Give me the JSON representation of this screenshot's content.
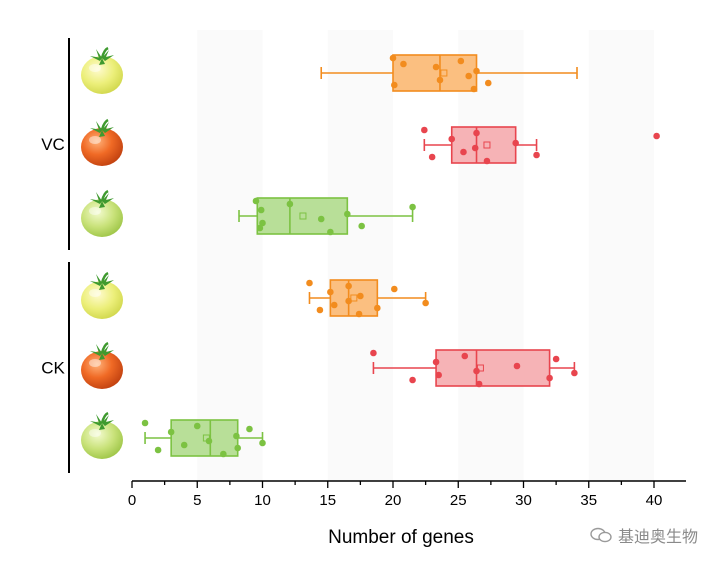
{
  "chart_data": {
    "type": "box",
    "orientation": "horizontal",
    "xlabel": "Number of genes",
    "xlim": [
      0,
      42
    ],
    "xticks": [
      0,
      5,
      10,
      15,
      20,
      25,
      30,
      35,
      40
    ],
    "groups": [
      {
        "name": "VC",
        "rows": [
          {
            "stage": "yellow",
            "color": "#f28c1e",
            "fill": "#fbbf80",
            "min": 14.5,
            "q1": 20,
            "median": 23.6,
            "q3": 26.4,
            "max": 34.1,
            "mean": 23.9,
            "points": [
              20,
              20.1,
              23.3,
              23.6,
              25.2,
              25.8,
              26.2,
              26.4,
              27.3,
              20.8
            ]
          },
          {
            "stage": "red",
            "color": "#e8454e",
            "fill": "#f6b3b6",
            "min": 22.4,
            "q1": 24.5,
            "median": 26.4,
            "q3": 29.4,
            "max": 31,
            "mean": 27.2,
            "points": [
              22.4,
              23,
              24.5,
              25.4,
              26.4,
              26.3,
              27.2,
              29.4,
              31,
              40.2
            ]
          },
          {
            "stage": "green",
            "color": "#7cc242",
            "fill": "#b8df98",
            "min": 8.2,
            "q1": 9.6,
            "median": 12.1,
            "q3": 16.5,
            "max": 21.5,
            "mean": 13.1,
            "points": [
              9.5,
              9.8,
              9.9,
              10,
              12.1,
              14.5,
              15.2,
              16.5,
              17.6,
              21.5
            ]
          }
        ]
      },
      {
        "name": "CK",
        "rows": [
          {
            "stage": "yellow",
            "color": "#f28c1e",
            "fill": "#fbbf80",
            "min": 13.6,
            "q1": 15.2,
            "median": 16.6,
            "q3": 18.8,
            "max": 22.5,
            "mean": 17.0,
            "points": [
              13.6,
              14.4,
              15.2,
              15.5,
              16.6,
              16.6,
              17.4,
              17.5,
              18.8,
              20.1,
              22.5
            ]
          },
          {
            "stage": "red",
            "color": "#e8454e",
            "fill": "#f6b3b6",
            "min": 18.5,
            "q1": 23.3,
            "median": 26.4,
            "q3": 32,
            "max": 33.9,
            "mean": 26.7,
            "points": [
              18.5,
              21.5,
              23.3,
              23.5,
              25.5,
              26.4,
              26.6,
              29.5,
              32,
              32.5,
              33.9
            ]
          },
          {
            "stage": "green",
            "color": "#7cc242",
            "fill": "#b8df98",
            "min": 1,
            "q1": 3,
            "median": 6,
            "q3": 8.1,
            "max": 10,
            "mean": 5.7,
            "points": [
              1,
              2,
              3,
              4,
              5,
              5.9,
              7,
              8,
              8.1,
              9,
              10
            ]
          }
        ]
      }
    ]
  },
  "watermark": {
    "text": "基迪奥生物"
  }
}
